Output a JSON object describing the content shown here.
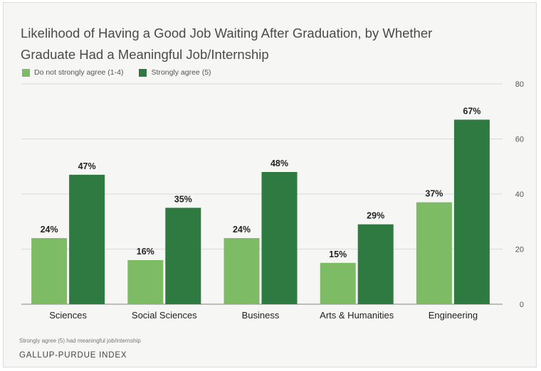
{
  "title_line1": "Likelihood of Having a Good Job Waiting After Graduation, by Whether",
  "title_line2": "Graduate Had a Meaningful Job/Internship",
  "footnote": "Strongly agree (5) had meaningful job/internship",
  "source": "GALLUP-PURDUE INDEX",
  "colors": {
    "light": "#7dbb64",
    "dark": "#2f7a40",
    "grid": "#d9d9d9",
    "axis": "#999999"
  },
  "chart_data": {
    "type": "bar",
    "categories": [
      "Sciences",
      "Social Sciences",
      "Business",
      "Arts & Humanities",
      "Engineering"
    ],
    "series": [
      {
        "name": "Do not strongly agree (1-4)",
        "values": [
          24,
          16,
          24,
          15,
          37
        ],
        "labels": [
          "24%",
          "16%",
          "24%",
          "15%",
          "37%"
        ],
        "color": "#7dbb64"
      },
      {
        "name": "Strongly agree (5)",
        "values": [
          47,
          35,
          48,
          29,
          67
        ],
        "labels": [
          "47%",
          "35%",
          "48%",
          "29%",
          "67%"
        ],
        "color": "#2f7a40"
      }
    ],
    "ylim": [
      0,
      80
    ],
    "yticks": [
      0,
      20,
      40,
      60,
      80
    ],
    "y_axis_side": "right",
    "grid": true,
    "legend_position": "top-left"
  }
}
